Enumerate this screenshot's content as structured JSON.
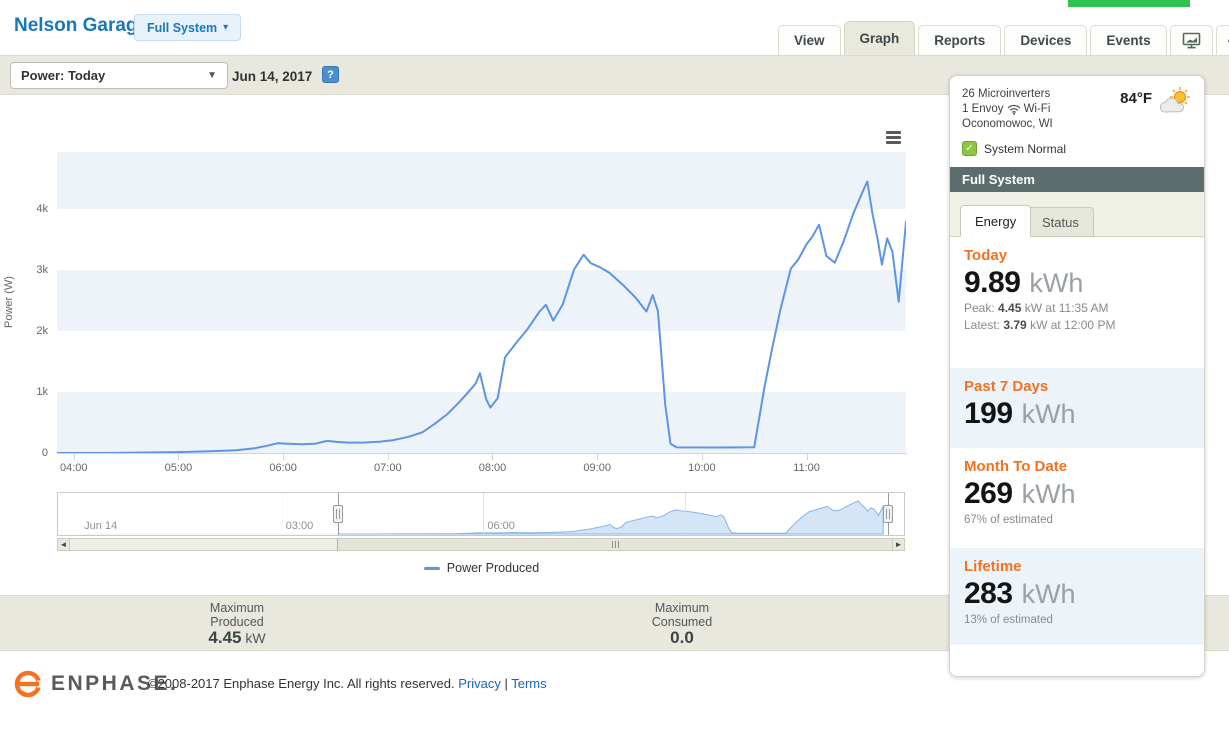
{
  "header": {
    "system_name": "Nelson Garage",
    "system_selector": "Full System",
    "caret": "▾"
  },
  "tabs": [
    {
      "label": "View",
      "active": false
    },
    {
      "label": "Graph",
      "active": true
    },
    {
      "label": "Reports",
      "active": false
    },
    {
      "label": "Devices",
      "active": false
    },
    {
      "label": "Events",
      "active": false
    }
  ],
  "toolbar": {
    "graph_type_selected": "Power: Today",
    "date": "Jun 14, 2017",
    "help_glyph": "?"
  },
  "chart_data": {
    "type": "line",
    "title": "",
    "xlabel": "",
    "ylabel": "Power (W)",
    "x_unit": "hour_of_day",
    "xlim": [
      3.84,
      11.95
    ],
    "ylim": [
      0,
      4934
    ],
    "grid": "alternating-horizontal-bands",
    "band_color": "#eef3fa",
    "legend_position": "bottom-center",
    "legend": [
      "Power Produced"
    ],
    "y_ticks": [
      {
        "v": 0,
        "label": "0"
      },
      {
        "v": 1000,
        "label": "1k"
      },
      {
        "v": 2000,
        "label": "2k"
      },
      {
        "v": 3000,
        "label": "3k"
      },
      {
        "v": 4000,
        "label": "4k"
      }
    ],
    "x_ticks": [
      {
        "v": 4,
        "label": "04:00"
      },
      {
        "v": 5,
        "label": "05:00"
      },
      {
        "v": 6,
        "label": "06:00"
      },
      {
        "v": 7,
        "label": "07:00"
      },
      {
        "v": 8,
        "label": "08:00"
      },
      {
        "v": 9,
        "label": "09:00"
      },
      {
        "v": 10,
        "label": "10:00"
      },
      {
        "v": 11,
        "label": "11:00"
      }
    ],
    "series": [
      {
        "name": "Power Produced",
        "color": "#5b95e7",
        "points": [
          [
            3.84,
            0
          ],
          [
            4.3,
            0
          ],
          [
            4.7,
            8
          ],
          [
            5.0,
            15
          ],
          [
            5.3,
            28
          ],
          [
            5.55,
            45
          ],
          [
            5.72,
            75
          ],
          [
            5.85,
            120
          ],
          [
            5.95,
            160
          ],
          [
            6.05,
            150
          ],
          [
            6.18,
            143
          ],
          [
            6.3,
            150
          ],
          [
            6.42,
            198
          ],
          [
            6.5,
            185
          ],
          [
            6.62,
            170
          ],
          [
            6.78,
            172
          ],
          [
            6.92,
            185
          ],
          [
            7.05,
            210
          ],
          [
            7.2,
            265
          ],
          [
            7.33,
            340
          ],
          [
            7.45,
            480
          ],
          [
            7.57,
            640
          ],
          [
            7.68,
            830
          ],
          [
            7.78,
            1020
          ],
          [
            7.84,
            1140
          ],
          [
            7.88,
            1310
          ],
          [
            7.94,
            880
          ],
          [
            7.98,
            745
          ],
          [
            8.05,
            900
          ],
          [
            8.12,
            1570
          ],
          [
            8.22,
            1790
          ],
          [
            8.33,
            2020
          ],
          [
            8.45,
            2320
          ],
          [
            8.51,
            2430
          ],
          [
            8.58,
            2170
          ],
          [
            8.67,
            2430
          ],
          [
            8.78,
            3010
          ],
          [
            8.87,
            3250
          ],
          [
            8.94,
            3110
          ],
          [
            9.02,
            3050
          ],
          [
            9.12,
            2950
          ],
          [
            9.25,
            2750
          ],
          [
            9.37,
            2540
          ],
          [
            9.47,
            2320
          ],
          [
            9.53,
            2590
          ],
          [
            9.58,
            2330
          ],
          [
            9.65,
            800
          ],
          [
            9.7,
            150
          ],
          [
            9.76,
            92
          ],
          [
            10.2,
            90
          ],
          [
            10.5,
            95
          ],
          [
            10.6,
            1100
          ],
          [
            10.67,
            1700
          ],
          [
            10.75,
            2350
          ],
          [
            10.85,
            3020
          ],
          [
            10.92,
            3170
          ],
          [
            11.0,
            3420
          ],
          [
            11.06,
            3560
          ],
          [
            11.12,
            3740
          ],
          [
            11.19,
            3230
          ],
          [
            11.27,
            3120
          ],
          [
            11.35,
            3450
          ],
          [
            11.45,
            3940
          ],
          [
            11.53,
            4260
          ],
          [
            11.58,
            4450
          ],
          [
            11.63,
            3920
          ],
          [
            11.68,
            3500
          ],
          [
            11.72,
            3090
          ],
          [
            11.77,
            3520
          ],
          [
            11.82,
            3300
          ],
          [
            11.88,
            2480
          ],
          [
            11.95,
            3790
          ]
        ]
      }
    ],
    "navigator": {
      "xlim": [
        -0.33,
        12.26
      ],
      "labels": [
        {
          "v": 0,
          "label": "Jun 14"
        },
        {
          "v": 3,
          "label": "03:00"
        },
        {
          "v": 6,
          "label": "06:00"
        }
      ],
      "gridlines": [
        3,
        6,
        9
      ],
      "selected_range": [
        3.84,
        12.02
      ],
      "area_color": "rgba(133,180,233,0.35)",
      "line_color": "#85b4e9"
    }
  },
  "stats_bar": [
    {
      "line1": "Maximum",
      "line2": "Produced",
      "value": "4.45",
      "unit": " kW"
    },
    {
      "line1": "Maximum",
      "line2": "Consumed",
      "value": "0.0",
      "unit": ""
    }
  ],
  "sidebar": {
    "info": {
      "line1": "26 Microinverters",
      "line2_pre": "1 Envoy",
      "line2_post": "Wi-Fi",
      "line3": "Oconomowoc, WI",
      "temperature": "84°F",
      "status": "System Normal",
      "check_glyph": "✓"
    },
    "panel_title": "Full System",
    "tabs": {
      "energy": "Energy",
      "status": "Status"
    },
    "today": {
      "label": "Today",
      "value": "9.89",
      "unit": "kWh",
      "peak_label": "Peak:",
      "peak_value": "4.45",
      "peak_rest": "kW at 11:35 AM",
      "latest_label": "Latest:",
      "latest_value": "3.79",
      "latest_rest": "kW at 12:00 PM"
    },
    "past7": {
      "label": "Past 7 Days",
      "value": "199",
      "unit": "kWh"
    },
    "mtd": {
      "label": "Month To Date",
      "value": "269",
      "unit": "kWh",
      "note": "67% of estimated"
    },
    "lifetime": {
      "label": "Lifetime",
      "value": "283",
      "unit": "kWh",
      "note": "13% of estimated"
    }
  },
  "footer": {
    "brand": "ENPHASE.",
    "copyright": "©2008-2017 Enphase Energy Inc. All rights reserved. ",
    "privacy": "Privacy",
    "separator": " | ",
    "terms": "Terms"
  },
  "colors": {
    "accent_orange": "#f4711f",
    "brand_blue": "#1778be",
    "line_blue": "#5b95e7",
    "band_beige": "#e9e8df",
    "panel_slate": "#5c6d6d",
    "status_green": "#8dc63f",
    "section_blue": "#edf4f9"
  }
}
